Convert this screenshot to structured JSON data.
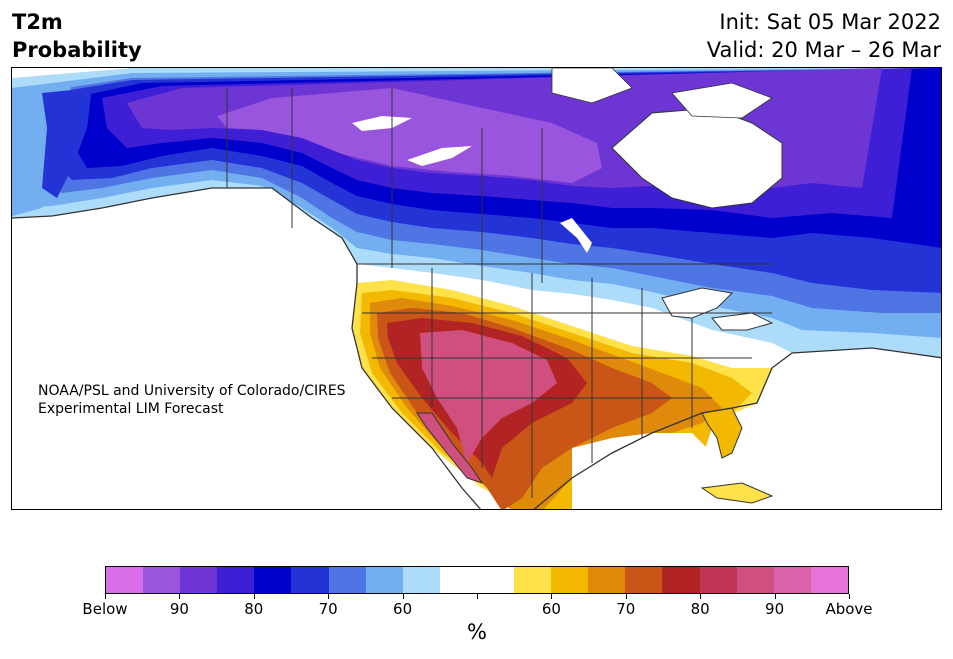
{
  "header": {
    "variable": "T2m",
    "product": "Probability",
    "init": "Init: Sat 05 Mar 2022",
    "valid": "Valid: 20 Mar – 26 Mar"
  },
  "credit": {
    "line1": "NOAA/PSL and University of Colorado/CIRES",
    "line2": "Experimental LIM Forecast"
  },
  "colorbar": {
    "unit": "%",
    "colors": [
      "#d86fe8",
      "#9a55de",
      "#6d36d4",
      "#3e1fd6",
      "#0000cc",
      "#2433d6",
      "#4f74e4",
      "#72aef0",
      "#acdcfa",
      "#ffffff",
      "#ffffff",
      "#ffe14a",
      "#f3b800",
      "#e08a0c",
      "#c95516",
      "#b22424",
      "#c13657",
      "#cf4f7f",
      "#db62a8",
      "#e674d8"
    ],
    "tick_labels": [
      "Below",
      "90",
      "80",
      "70",
      "60",
      "",
      "60",
      "70",
      "80",
      "90",
      "Above"
    ]
  },
  "map": {
    "land_color": "#ffffff",
    "border_color": "#333333",
    "below_colors": [
      "#9a55de",
      "#6d36d4",
      "#3e1fd6",
      "#0000cc",
      "#2433d6",
      "#4f74e4",
      "#72aef0",
      "#acdcfa"
    ],
    "above_colors": [
      "#ffe14a",
      "#f3b800",
      "#e08a0c",
      "#c95516",
      "#b22424",
      "#cf4f7f"
    ]
  }
}
